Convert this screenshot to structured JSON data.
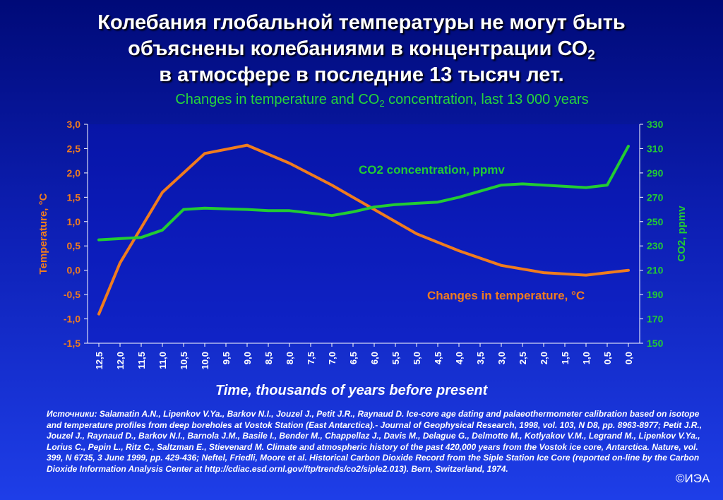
{
  "title": {
    "line1": "Колебания глобальной температуры не могут быть",
    "line2_prefix": "объяснены колебаниями в концентрации СО",
    "line2_sub": "2",
    "line3": "в атмосфере в последние 13 тысяч лет."
  },
  "subtitle": {
    "prefix": "Changes in temperature and CO",
    "sub": "2",
    "suffix": " concentration, last 13 000 years"
  },
  "colors": {
    "temperature": "#f07c1e",
    "co2": "#22cc33",
    "axis": "#ffffff",
    "plot_background": "#0a14c0"
  },
  "chart_data": {
    "type": "line",
    "x": [
      12.5,
      12.0,
      11.5,
      11.0,
      10.5,
      10.0,
      9.5,
      9.0,
      8.5,
      8.0,
      7.5,
      7.0,
      6.5,
      6.0,
      5.5,
      5.0,
      4.5,
      4.0,
      3.5,
      3.0,
      2.5,
      2.0,
      1.5,
      1.0,
      0.5,
      0.0
    ],
    "x_tick_labels": [
      "12,5",
      "12,0",
      "11,5",
      "11,0",
      "10,5",
      "10,0",
      "9,5",
      "9,0",
      "8,5",
      "8,0",
      "7,5",
      "7,0",
      "6,5",
      "6,0",
      "5,5",
      "5,0",
      "4,5",
      "4,0",
      "3,5",
      "3,0",
      "2,5",
      "2,0",
      "1,5",
      "1,0",
      "0,5",
      "0,0"
    ],
    "xlabel": "Time, thousands of years before present",
    "x_reversed": true,
    "y_left": {
      "label": "Temperature, °C",
      "range": [
        -1.5,
        3.0
      ],
      "ticks": [
        -1.5,
        -1.0,
        -0.5,
        0.0,
        0.5,
        1.0,
        1.5,
        2.0,
        2.5,
        3.0
      ],
      "tick_labels": [
        "-1,5",
        "-1,0",
        "-0,5",
        "0,0",
        "0,5",
        "1,0",
        "1,5",
        "2,0",
        "2,5",
        "3,0"
      ]
    },
    "y_right": {
      "label": "CO2, ppmv",
      "range": [
        150,
        330
      ],
      "ticks": [
        150,
        170,
        190,
        210,
        230,
        250,
        270,
        290,
        310,
        330
      ],
      "tick_labels": [
        "150",
        "170",
        "190",
        "210",
        "230",
        "250",
        "270",
        "290",
        "310",
        "330"
      ]
    },
    "grid": false,
    "series": [
      {
        "name": "Changes in temperature, °C",
        "axis": "left",
        "points": [
          [
            12.5,
            -0.9
          ],
          [
            12.0,
            0.15
          ],
          [
            11.0,
            1.6
          ],
          [
            10.0,
            2.4
          ],
          [
            9.0,
            2.57
          ],
          [
            8.0,
            2.2
          ],
          [
            7.0,
            1.75
          ],
          [
            6.0,
            1.25
          ],
          [
            5.0,
            0.75
          ],
          [
            4.0,
            0.4
          ],
          [
            3.0,
            0.1
          ],
          [
            2.0,
            -0.05
          ],
          [
            1.0,
            -0.1
          ],
          [
            0.5,
            -0.05
          ],
          [
            0.0,
            0.0
          ]
        ]
      },
      {
        "name": "CO2 concentration, ppmv",
        "axis": "right",
        "points": [
          [
            12.5,
            235
          ],
          [
            12.0,
            236
          ],
          [
            11.5,
            237
          ],
          [
            11.0,
            243
          ],
          [
            10.5,
            260
          ],
          [
            10.0,
            261
          ],
          [
            9.5,
            260.5
          ],
          [
            9.0,
            260
          ],
          [
            8.5,
            259
          ],
          [
            8.0,
            259
          ],
          [
            7.0,
            255
          ],
          [
            6.5,
            258
          ],
          [
            6.0,
            262
          ],
          [
            5.5,
            264
          ],
          [
            5.0,
            265
          ],
          [
            4.5,
            266
          ],
          [
            4.0,
            270
          ],
          [
            3.5,
            275
          ],
          [
            3.0,
            280
          ],
          [
            2.5,
            281
          ],
          [
            2.0,
            280
          ],
          [
            1.0,
            278
          ],
          [
            0.5,
            280
          ],
          [
            0.0,
            312
          ]
        ]
      }
    ]
  },
  "sources": "Источники: Salamatin A.N., Lipenkov V.Ya., Barkov N.I., Jouzel J., Petit J.R., Raynaud D. Ice-core age dating and palaeothermometer calibration based on isotope and temperature profiles from deep boreholes at Vostok  Station (East Antarctica).- Journal of Geophysical Research, 1998, vol. 103, N D8, pp. 8963-8977; Petit J.R., Jouzel J., Raynaud D., Barkov N.I., Barnola J.M., Basile I., Bender M., Chappellaz J., Davis M., Delague G., Delmotte M., Kotlyakov V.M., Legrand M., Lipenkov V.Ya., Lorius C., Pepin L., Ritz C., Saltzman E., Stievenard M. Climate and atmospheric history of the past 420,000 years from the Vostok ice core, Antarctica. Nature, vol. 399, N 6735, 3 June 1999, pp. 429-436; Neftel, Friedli, Moore et al. Historical Carbon Dioxide Record from the Siple Station Ice Core (reported on-line by the Carbon Dioxide Information Analysis Center at http://cdiac.esd.ornl.gov/ftp/trends/co2/siple2.013).  Bern, Switzerland, 1974.",
  "copyright": "©ИЭА"
}
